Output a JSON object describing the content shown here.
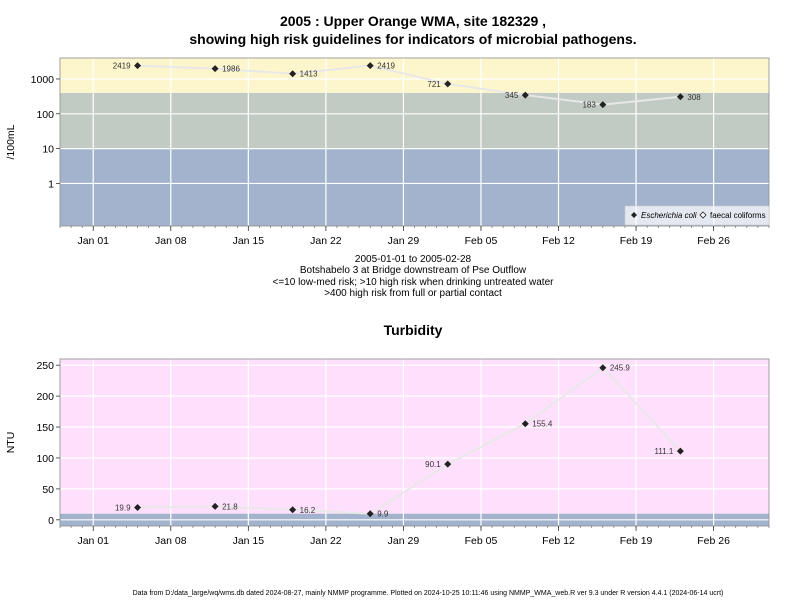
{
  "page": {
    "footer": "Data from D:/data_large/wq/wms.db dated 2024-08-27, mainly NMMP programme. Plotted on 2024-10-25 10:11:46 using NMMP_WMA_web.R ver 9.3 under R version 4.4.1 (2024-06-14 ucrt)"
  },
  "chart_data": [
    {
      "type": "scatter",
      "title_line1": "2005 : Upper Orange WMA, site 182329 ,",
      "title_line2": "showing high risk guidelines for indicators of microbial pathogens.",
      "ylabel": "/100mL",
      "yscale": "log10",
      "ylim": [
        0.06,
        4000
      ],
      "yticks": [
        "1",
        "10",
        "100",
        "1000"
      ],
      "xlim": [
        "2004-12-29",
        "2005-03-03"
      ],
      "xticks": [
        "Jan 01",
        "Jan 08",
        "Jan 15",
        "Jan 22",
        "Jan 29",
        "Feb 05",
        "Feb 12",
        "Feb 19",
        "Feb 26"
      ],
      "xtick_dates": [
        "2005-01-01",
        "2005-01-08",
        "2005-01-15",
        "2005-01-22",
        "2005-01-29",
        "2005-02-05",
        "2005-02-12",
        "2005-02-19",
        "2005-02-26"
      ],
      "bands": [
        {
          "from": 0.06,
          "to": 10,
          "color": "#a3b3cd"
        },
        {
          "from": 10,
          "to": 400,
          "color": "#c2cbc3"
        },
        {
          "from": 400,
          "to": 4000,
          "color": "#fdf6cd"
        }
      ],
      "series": [
        {
          "name": "Escherichia coli",
          "marker": "diamond-filled",
          "x": [
            "2005-01-05",
            "2005-01-12",
            "2005-01-19",
            "2005-01-26",
            "2005-02-02",
            "2005-02-09",
            "2005-02-16",
            "2005-02-23"
          ],
          "y": [
            2419,
            1986,
            1413,
            2419,
            721,
            345,
            183,
            308
          ],
          "labels": [
            "2419",
            "1986",
            "1413",
            "2419",
            "721",
            "345",
            "183",
            "308"
          ]
        }
      ],
      "legend": {
        "position": "bottom-right",
        "entries": [
          "Escherichia coli",
          "faecal coliforms"
        ]
      },
      "caption": [
        "2005-01-01 to 2005-02-28",
        "Botshabelo 3 at Bridge downstream of Pse Outflow",
        "<=10 low-med risk; >10 high risk when drinking untreated water",
        ">400 high risk from full or partial contact"
      ]
    },
    {
      "type": "scatter",
      "title": "Turbidity",
      "ylabel": "NTU",
      "ylim": [
        -10,
        260
      ],
      "yticks": [
        "0",
        "50",
        "100",
        "150",
        "200",
        "250"
      ],
      "xlim": [
        "2004-12-29",
        "2005-03-03"
      ],
      "xticks": [
        "Jan 01",
        "Jan 08",
        "Jan 15",
        "Jan 22",
        "Jan 29",
        "Feb 05",
        "Feb 12",
        "Feb 19",
        "Feb 26"
      ],
      "xtick_dates": [
        "2005-01-01",
        "2005-01-08",
        "2005-01-15",
        "2005-01-22",
        "2005-01-29",
        "2005-02-05",
        "2005-02-12",
        "2005-02-19",
        "2005-02-26"
      ],
      "bands": [
        {
          "from": -10,
          "to": 10,
          "color": "#a3b3cd"
        },
        {
          "from": 10,
          "to": 260,
          "color": "#fee0fd"
        }
      ],
      "series": [
        {
          "marker": "diamond-filled",
          "x": [
            "2005-01-05",
            "2005-01-12",
            "2005-01-19",
            "2005-01-26",
            "2005-02-02",
            "2005-02-09",
            "2005-02-16",
            "2005-02-23"
          ],
          "y": [
            19.9,
            21.8,
            16.2,
            9.9,
            90.1,
            155.4,
            245.9,
            111.1
          ],
          "labels": [
            "19.9",
            "21.8",
            "16.2",
            "9.9",
            "90.1",
            "155.4",
            "245.9",
            "111.1"
          ]
        }
      ]
    }
  ]
}
